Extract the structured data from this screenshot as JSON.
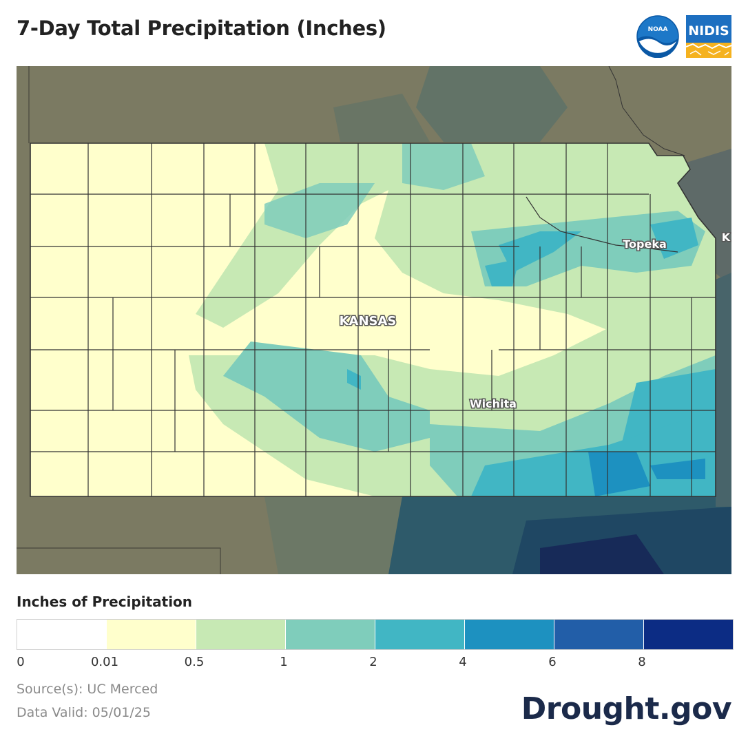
{
  "header": {
    "title": "7-Day Total Precipitation (Inches)",
    "logos": {
      "noaa_text": "NOAA",
      "nidis_text": "NIDIS"
    }
  },
  "map": {
    "state_label": "KANSAS",
    "city_labels": [
      "Topeka",
      "Wichita"
    ],
    "edge_label": "K",
    "colors": {
      "outside": "#7b7a62",
      "land_light": "#ffffcc",
      "green": "#c7e9b4",
      "teal": "#7fcdbb",
      "blue_light": "#41b6c4",
      "blue": "#1d91c0",
      "blue_dark": "#225ea8",
      "navy": "#0c2c84",
      "county_line": "#333333"
    }
  },
  "legend": {
    "title": "Inches of Precipitation",
    "swatch_colors": [
      "#ffffff",
      "#ffffcc",
      "#c7e9b4",
      "#7fcdbb",
      "#41b6c4",
      "#1d91c0",
      "#225ea8",
      "#0c2c84"
    ],
    "ticks": [
      "0",
      "0.01",
      "0.5",
      "1",
      "2",
      "4",
      "6",
      "8"
    ]
  },
  "footer": {
    "source": "Source(s): UC Merced",
    "valid": "Data Valid: 05/01/25",
    "brand": "Drought.gov"
  }
}
